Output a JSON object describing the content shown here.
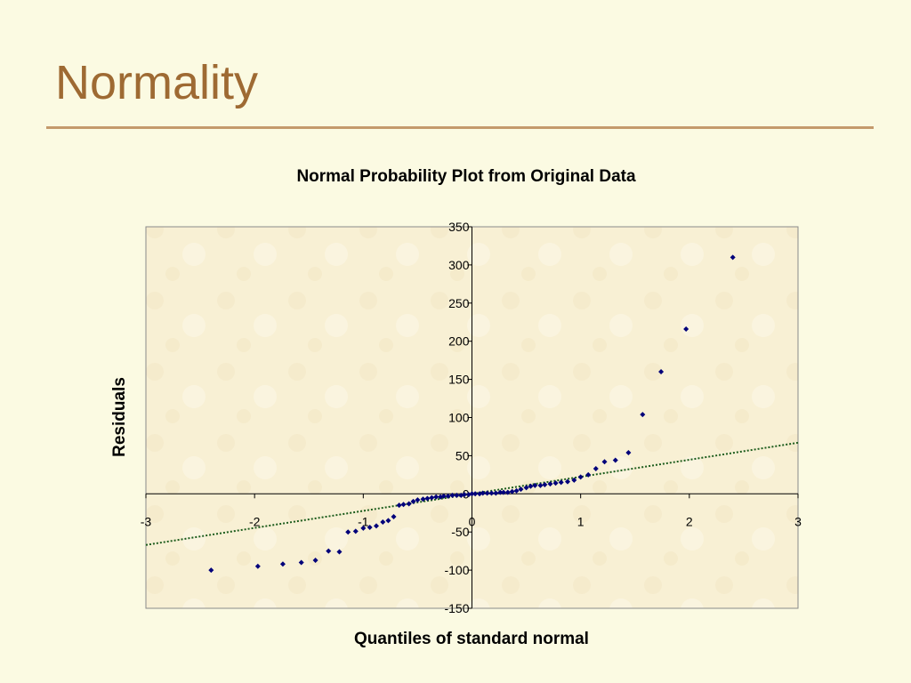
{
  "slide": {
    "title": "Normality"
  },
  "colors": {
    "title": "#9E6A33",
    "rule": "#C49A6C",
    "point": "#00007A",
    "trend": "#1C5C1C",
    "plot_bg": "#F8F0D4"
  },
  "chart_data": {
    "type": "scatter",
    "title": "Normal Probability Plot from Original Data",
    "xlabel": "Quantiles of standard normal",
    "ylabel": "Residuals",
    "xlim": [
      -3,
      3
    ],
    "ylim": [
      -150,
      350
    ],
    "xticks": [
      "-3",
      "-2",
      "-1",
      "0",
      "1",
      "2",
      "3"
    ],
    "yticks": [
      "-150",
      "-100",
      "-50",
      "0",
      "50",
      "100",
      "150",
      "200",
      "250",
      "300",
      "350"
    ],
    "points": [
      [
        -2.4,
        -100
      ],
      [
        -1.97,
        -95
      ],
      [
        -1.74,
        -92
      ],
      [
        -1.57,
        -90
      ],
      [
        -1.44,
        -87
      ],
      [
        -1.32,
        -75
      ],
      [
        -1.22,
        -76
      ],
      [
        -1.14,
        -50
      ],
      [
        -1.07,
        -49
      ],
      [
        -1.0,
        -45
      ],
      [
        -0.94,
        -44
      ],
      [
        -0.88,
        -42
      ],
      [
        -0.82,
        -37
      ],
      [
        -0.77,
        -35
      ],
      [
        -0.72,
        -30
      ],
      [
        -0.67,
        -15
      ],
      [
        -0.63,
        -14
      ],
      [
        -0.58,
        -13
      ],
      [
        -0.54,
        -10
      ],
      [
        -0.5,
        -8
      ],
      [
        -0.45,
        -7
      ],
      [
        -0.41,
        -6
      ],
      [
        -0.37,
        -5
      ],
      [
        -0.33,
        -4
      ],
      [
        -0.29,
        -4
      ],
      [
        -0.26,
        -3
      ],
      [
        -0.22,
        -3
      ],
      [
        -0.18,
        -2
      ],
      [
        -0.14,
        -2
      ],
      [
        -0.1,
        -2
      ],
      [
        -0.07,
        -1
      ],
      [
        -0.03,
        -1
      ],
      [
        0.0,
        0
      ],
      [
        0.03,
        0
      ],
      [
        0.07,
        0
      ],
      [
        0.1,
        1
      ],
      [
        0.14,
        1
      ],
      [
        0.18,
        1
      ],
      [
        0.22,
        1
      ],
      [
        0.26,
        2
      ],
      [
        0.29,
        2
      ],
      [
        0.33,
        2
      ],
      [
        0.37,
        3
      ],
      [
        0.41,
        4
      ],
      [
        0.45,
        6
      ],
      [
        0.5,
        8
      ],
      [
        0.54,
        10
      ],
      [
        0.58,
        11
      ],
      [
        0.63,
        11
      ],
      [
        0.67,
        12
      ],
      [
        0.72,
        13
      ],
      [
        0.77,
        14
      ],
      [
        0.82,
        15
      ],
      [
        0.88,
        16
      ],
      [
        0.94,
        18
      ],
      [
        1.0,
        22
      ],
      [
        1.07,
        25
      ],
      [
        1.14,
        33
      ],
      [
        1.22,
        42
      ],
      [
        1.32,
        44
      ],
      [
        1.44,
        54
      ],
      [
        1.57,
        104
      ],
      [
        1.74,
        160
      ],
      [
        1.97,
        216
      ],
      [
        2.4,
        310
      ]
    ],
    "trendline": {
      "type": "linear",
      "points": [
        [
          -3,
          -67
        ],
        [
          3,
          67
        ]
      ]
    },
    "grid": false,
    "legend": "none"
  }
}
